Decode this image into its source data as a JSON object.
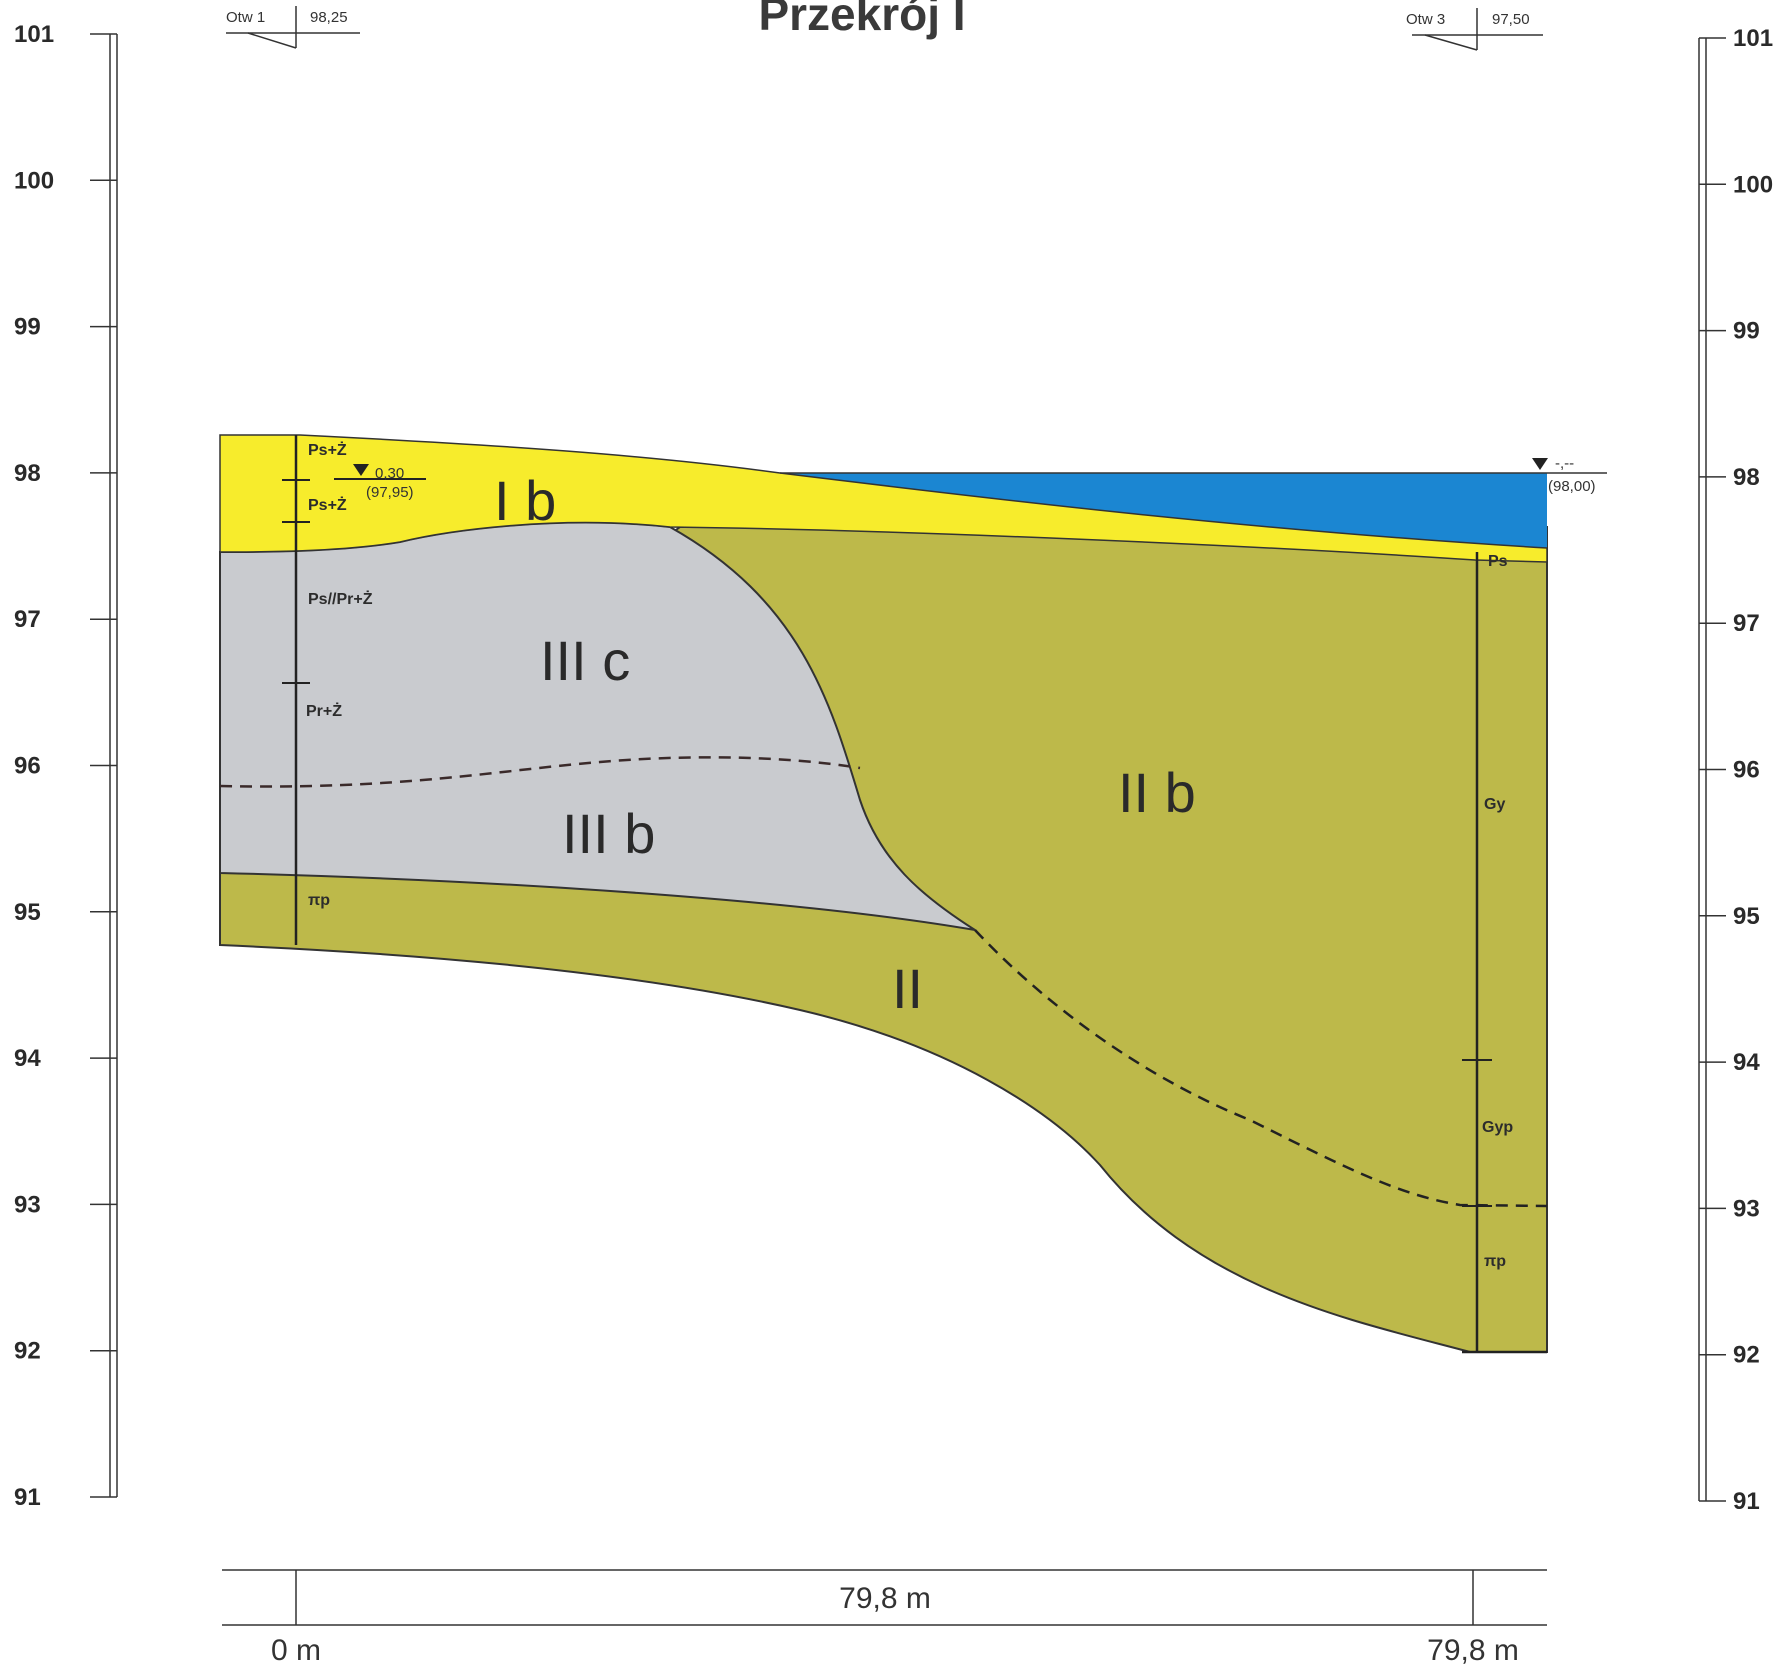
{
  "title": "Przekrój I",
  "elevation_scale": {
    "labels": [
      "101",
      "100",
      "99",
      "98",
      "97",
      "96",
      "95",
      "94",
      "93",
      "92",
      "91"
    ],
    "unit_note": ""
  },
  "boreholes": [
    {
      "name": "Otw 1",
      "elevation": "98,25",
      "soils": [
        "Ps+Ż",
        "Ps+Ż",
        "Ps//Pr+Ż",
        "Pr+Ż",
        "πp"
      ],
      "water_depth": "0,30",
      "water_elevation": "(97,95)"
    },
    {
      "name": "Otw 3",
      "elevation": "97,50",
      "soils": [
        "Ps",
        "Gy",
        "Gyp",
        "πp"
      ],
      "water_depth": "-,--",
      "water_elevation": "(98,00)"
    }
  ],
  "layers": {
    "ib": "I b",
    "iiic": "III c",
    "iiib": "III b",
    "iib": "II b",
    "ii": "II"
  },
  "distance": {
    "total": "79,8 m",
    "start": "0 m",
    "end": "79,8 m"
  },
  "colors": {
    "sand_yellow": "#f7ec2c",
    "water_blue": "#1b86d2",
    "grey_layer": "#c9cbcf",
    "olive_layer": "#bdb94a"
  }
}
